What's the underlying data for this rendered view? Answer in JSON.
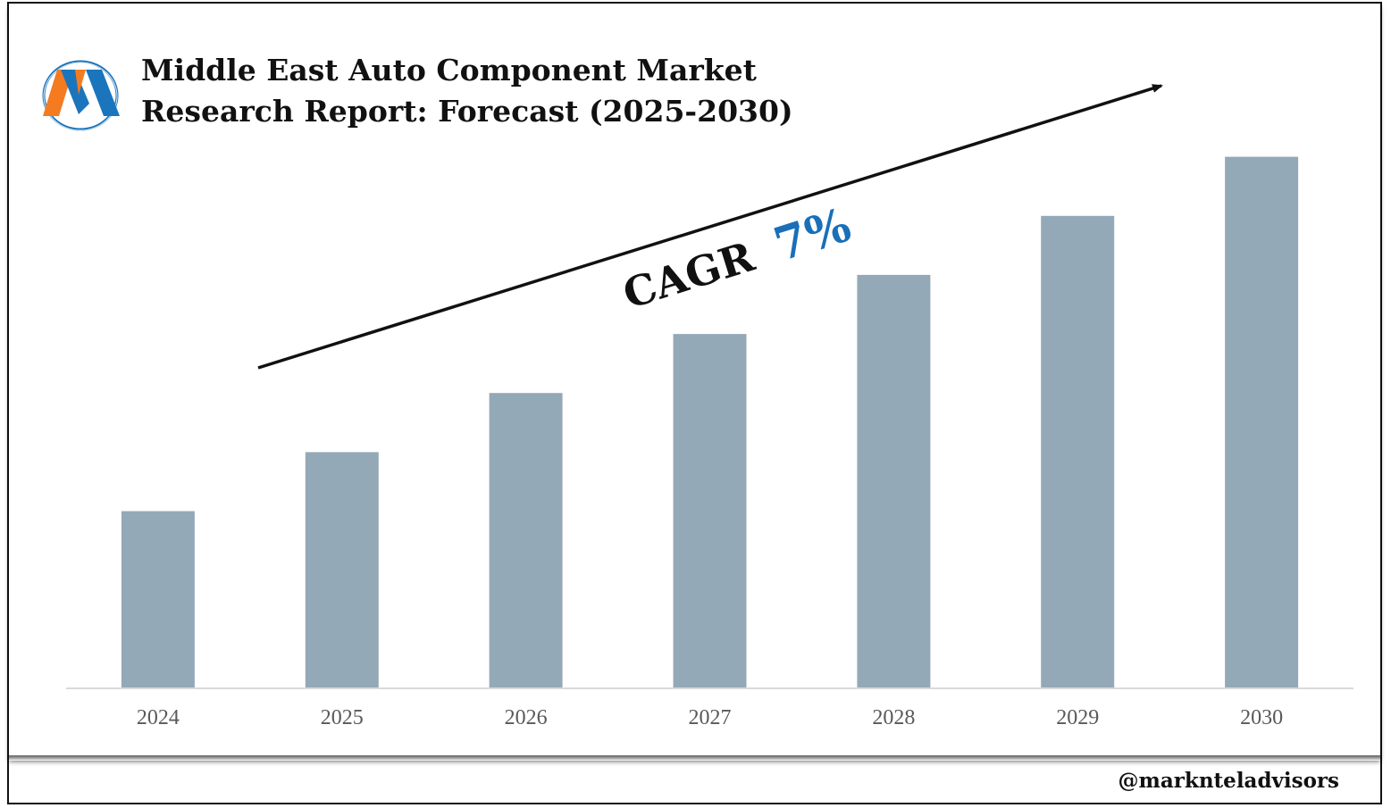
{
  "header": {
    "title_line1": "Middle East Auto Component Market",
    "title_line2": "Research Report: Forecast (2025-2030)",
    "logo_icon": "marknteladvisors-m-logo-icon"
  },
  "annotation": {
    "cagr_label": "CAGR",
    "cagr_value": "7%",
    "cagr_value_color": "#1a6fb8"
  },
  "footer": {
    "handle": "@marknteladvisors"
  },
  "colors": {
    "bar": "#94a9b8",
    "axis": "#d9d9d9",
    "tick_text": "#595959",
    "logo_orange": "#f47b20",
    "logo_blue": "#1a75bc"
  },
  "chart_data": {
    "type": "bar",
    "categories": [
      "2024",
      "2025",
      "2026",
      "2027",
      "2028",
      "2029",
      "2030"
    ],
    "values": [
      1.0,
      1.07,
      1.14,
      1.21,
      1.28,
      1.35,
      1.42
    ],
    "title": "Middle East Auto Component Market Research Report: Forecast (2025-2030)",
    "xlabel": "",
    "ylabel": "",
    "ylim": [
      0.79,
      1.5
    ],
    "grid": false,
    "legend": "none"
  }
}
